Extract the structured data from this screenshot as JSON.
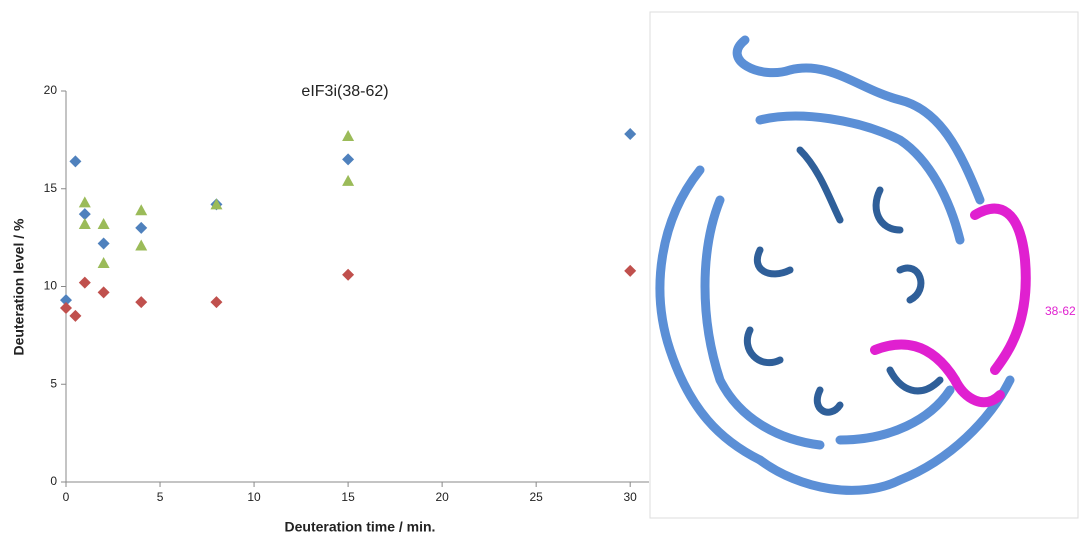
{
  "chart_data": {
    "type": "scatter",
    "title": "eIF3i(38-62)",
    "x_label": "Deuteration time / min.",
    "y_label": "Deuteration level / %",
    "xlim": [
      0,
      31
    ],
    "ylim": [
      0,
      20
    ],
    "xticks": [
      0,
      5,
      10,
      15,
      20,
      25,
      30
    ],
    "yticks": [
      0,
      5,
      10,
      15,
      20
    ],
    "grid": false,
    "series": [
      {
        "color": "#4f81bd",
        "marker": "diamond",
        "x": [
          0,
          0.5,
          1,
          2,
          4,
          8,
          15,
          30
        ],
        "values": [
          9.3,
          16.4,
          13.7,
          12.2,
          13.0,
          14.2,
          16.5,
          17.8
        ]
      },
      {
        "color": "#c0504d",
        "marker": "diamond",
        "x": [
          0,
          0.5,
          1,
          2,
          4,
          8,
          15,
          30
        ],
        "values": [
          8.9,
          8.5,
          10.2,
          9.7,
          9.2,
          9.2,
          10.6,
          10.8
        ]
      },
      {
        "color": "#9bbb59",
        "marker": "triangle",
        "x": [
          1,
          1,
          2,
          2,
          4,
          4,
          8,
          15,
          15
        ],
        "values": [
          14.3,
          13.2,
          13.2,
          11.2,
          13.9,
          12.1,
          14.2,
          17.7,
          15.4
        ]
      }
    ]
  },
  "image": {
    "label": "38-62"
  }
}
